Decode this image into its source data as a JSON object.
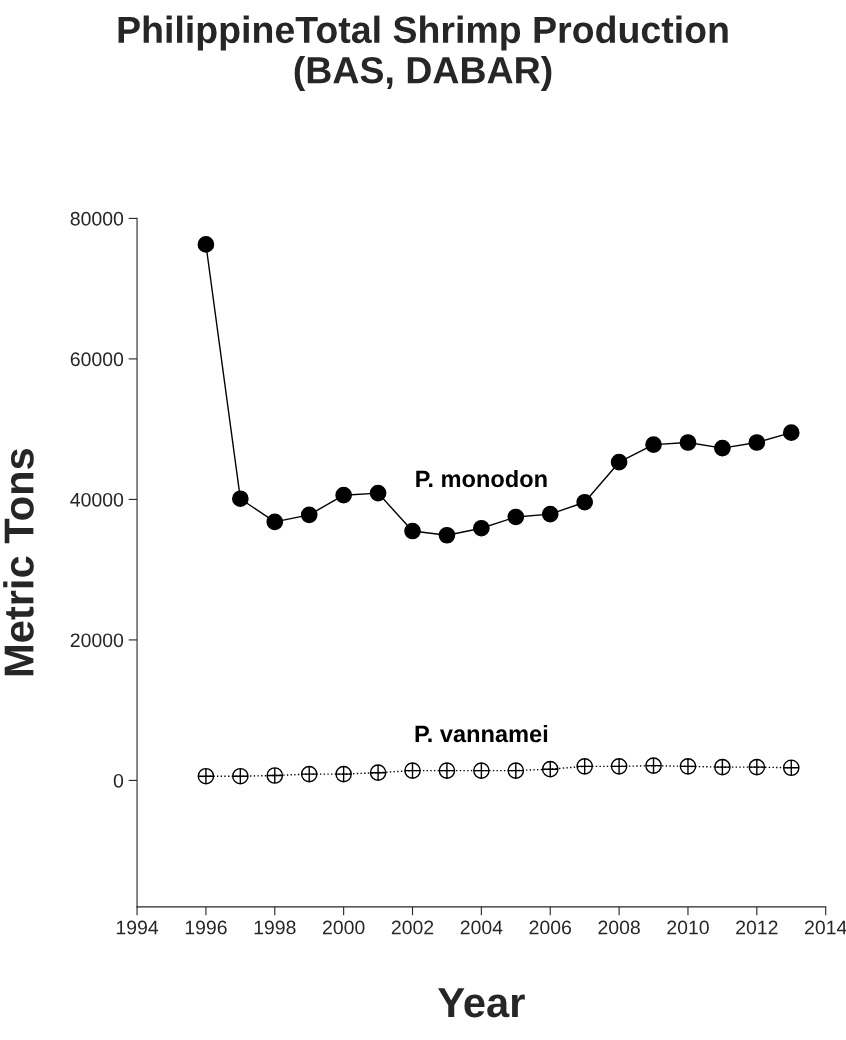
{
  "chart_data": {
    "type": "line",
    "title": "PhilippineTotal Shrimp Production\n(BAS, DABAR)",
    "xlabel": "Year",
    "ylabel": "Metric Tons",
    "x": [
      1996,
      1997,
      1998,
      1999,
      2000,
      2001,
      2002,
      2003,
      2004,
      2005,
      2006,
      2007,
      2008,
      2009,
      2010,
      2011,
      2012,
      2013
    ],
    "series": [
      {
        "name": "P. monodon",
        "color": "#000000",
        "marker": "circle",
        "line_style": "solid",
        "values": [
          76300,
          40100,
          36800,
          37800,
          40600,
          40900,
          35500,
          34900,
          35900,
          37500,
          37900,
          39600,
          45300,
          47800,
          48100,
          47300,
          48100,
          49500
        ]
      },
      {
        "name": "P. vannamei",
        "color": "#000000",
        "marker": "cross",
        "line_style": "dotted",
        "values": [
          600,
          600,
          700,
          900,
          900,
          1100,
          1400,
          1400,
          1400,
          1400,
          1600,
          2000,
          2000,
          2100,
          2000,
          1900,
          1900,
          1800
        ]
      }
    ],
    "xlim": [
      1994,
      2014
    ],
    "xticks": [
      1994,
      1996,
      1998,
      2000,
      2002,
      2004,
      2006,
      2008,
      2010,
      2012,
      2014
    ],
    "ylim": [
      -18000,
      80000
    ],
    "yticks": [
      0,
      20000,
      40000,
      60000,
      80000
    ],
    "grid": false,
    "legend": false
  }
}
